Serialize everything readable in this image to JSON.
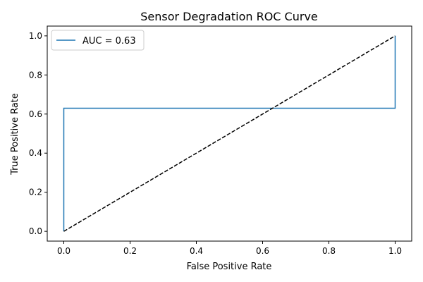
{
  "chart_data": {
    "type": "line",
    "title": "Sensor Degradation ROC Curve",
    "xlabel": "False Positive Rate",
    "ylabel": "True Positive Rate",
    "xlim": [
      -0.05,
      1.05
    ],
    "ylim": [
      -0.05,
      1.05
    ],
    "x_ticks": [
      0.0,
      0.2,
      0.4,
      0.6,
      0.8,
      1.0
    ],
    "y_ticks": [
      0.0,
      0.2,
      0.4,
      0.6,
      0.8,
      1.0
    ],
    "x_tick_labels": [
      "0.0",
      "0.2",
      "0.4",
      "0.6",
      "0.8",
      "1.0"
    ],
    "y_tick_labels": [
      "0.0",
      "0.2",
      "0.4",
      "0.6",
      "0.8",
      "1.0"
    ],
    "grid": false,
    "legend_position": "top-left",
    "series": [
      {
        "name": "AUC = 0.63",
        "color": "#1f77b4",
        "style": "solid",
        "x": [
          0.0,
          0.0,
          1.0,
          1.0
        ],
        "y": [
          0.0,
          0.63,
          0.63,
          1.0
        ]
      },
      {
        "color": "#000000",
        "style": "dashed",
        "x": [
          0.0,
          1.0
        ],
        "y": [
          0.0,
          1.0
        ]
      }
    ]
  }
}
